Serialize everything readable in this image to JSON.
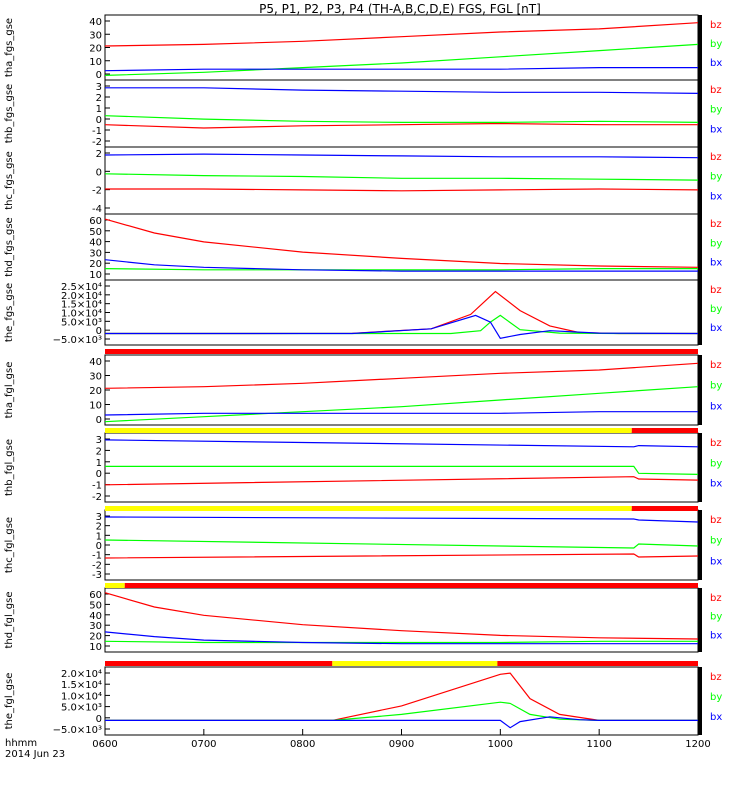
{
  "title": "P5, P1, P2, P3, P4 (TH-A,B,C,D,E) FGS, FGL [nT]",
  "footer": {
    "label": "hhmm",
    "date": "2014 Jun 23"
  },
  "xaxis": {
    "ticks": [
      "0600",
      "0700",
      "0800",
      "0900",
      "1000",
      "1100",
      "1200"
    ],
    "range": [
      6,
      12
    ]
  },
  "colors": {
    "bx": "#0000ff",
    "by": "#00ff00",
    "bz": "#ff0000",
    "flag_red": "#ff0000",
    "flag_yellow": "#ffff00"
  },
  "chart_data": [
    {
      "type": "line",
      "ylabel": "tha_fgs_gse",
      "yticks": [
        "40",
        "30",
        "20",
        "10",
        "0"
      ],
      "ylim": [
        0,
        42
      ],
      "series": [
        {
          "name": "bz",
          "x": [
            6,
            7,
            8,
            9,
            10,
            11,
            12
          ],
          "y": [
            22,
            23,
            25,
            28,
            31,
            33,
            37
          ]
        },
        {
          "name": "by",
          "x": [
            6,
            7,
            8,
            9,
            10,
            11,
            12
          ],
          "y": [
            3,
            5,
            8,
            11,
            15,
            19,
            23
          ]
        },
        {
          "name": "bx",
          "x": [
            6,
            7,
            8,
            9,
            10,
            11,
            12
          ],
          "y": [
            6,
            7,
            7,
            7,
            7,
            8,
            8
          ]
        }
      ]
    },
    {
      "type": "line",
      "ylabel": "thb_fgs_gse",
      "yticks": [
        "3",
        "2",
        "1",
        "0",
        "-1",
        "-2"
      ],
      "ylim": [
        -2.5,
        3.5
      ],
      "series": [
        {
          "name": "bz",
          "x": [
            6,
            7,
            8,
            9,
            10,
            11,
            12
          ],
          "y": [
            -0.5,
            -0.8,
            -0.6,
            -0.5,
            -0.4,
            -0.5,
            -0.5
          ]
        },
        {
          "name": "by",
          "x": [
            6,
            7,
            8,
            9,
            10,
            11,
            12
          ],
          "y": [
            0.3,
            0.0,
            -0.2,
            -0.3,
            -0.3,
            -0.2,
            -0.3
          ]
        },
        {
          "name": "bx",
          "x": [
            6,
            7,
            8,
            9,
            10,
            11,
            12
          ],
          "y": [
            2.8,
            2.8,
            2.6,
            2.5,
            2.4,
            2.4,
            2.3
          ]
        }
      ]
    },
    {
      "type": "line",
      "ylabel": "thc_fgs_gse",
      "yticks": [
        "2",
        "0",
        "-2",
        "-4"
      ],
      "ylim": [
        -4,
        3.5
      ],
      "series": [
        {
          "name": "bz",
          "x": [
            6,
            7,
            8,
            9,
            10,
            11,
            12
          ],
          "y": [
            -1.2,
            -1.2,
            -1.3,
            -1.4,
            -1.3,
            -1.2,
            -1.3
          ]
        },
        {
          "name": "by",
          "x": [
            6,
            7,
            8,
            9,
            10,
            11,
            12
          ],
          "y": [
            0.5,
            0.3,
            0.2,
            0.0,
            0.0,
            -0.1,
            -0.2
          ]
        },
        {
          "name": "bx",
          "x": [
            6,
            7,
            8,
            9,
            10,
            11,
            12
          ],
          "y": [
            2.6,
            2.7,
            2.6,
            2.5,
            2.4,
            2.4,
            2.3
          ]
        }
      ]
    },
    {
      "type": "line",
      "ylabel": "thd_fgs_gse",
      "yticks": [
        "60",
        "50",
        "40",
        "30",
        "20",
        "10"
      ],
      "ylim": [
        8,
        60
      ],
      "series": [
        {
          "name": "bz",
          "x": [
            6,
            6.5,
            7,
            8,
            9,
            10,
            11,
            12
          ],
          "y": [
            56,
            45,
            38,
            30,
            25,
            21,
            19,
            18
          ]
        },
        {
          "name": "by",
          "x": [
            6,
            7,
            8,
            9,
            10,
            11,
            12
          ],
          "y": [
            17,
            16,
            16,
            16,
            16,
            17,
            17
          ]
        },
        {
          "name": "bx",
          "x": [
            6,
            6.5,
            7,
            8,
            9,
            10,
            11,
            12
          ],
          "y": [
            24,
            20,
            18,
            16,
            15,
            15,
            15,
            15
          ]
        }
      ]
    },
    {
      "type": "line",
      "ylabel": "the_fgs_gse",
      "yticks": [
        "2.5×10⁴",
        "2.0×10⁴",
        "1.5×10⁴",
        "1.0×10⁴",
        "5.0×10³",
        "0",
        "−5.0×10³"
      ],
      "ylim": [
        -6000,
        28000
      ],
      "series": [
        {
          "name": "bz",
          "x": [
            6,
            7.5,
            8.5,
            9.3,
            9.7,
            9.95,
            10.2,
            10.5,
            10.8,
            11.2,
            12
          ],
          "y": [
            0,
            0,
            100,
            2500,
            10000,
            22000,
            12000,
            4000,
            500,
            0,
            0
          ]
        },
        {
          "name": "by",
          "x": [
            6,
            7.5,
            8.5,
            9.5,
            9.8,
            9.9,
            10,
            10.2,
            10.6,
            11.2,
            12
          ],
          "y": [
            0,
            0,
            0,
            0,
            1500,
            6000,
            9500,
            2000,
            200,
            0,
            0
          ]
        },
        {
          "name": "bx",
          "x": [
            6,
            7.5,
            8.5,
            9.3,
            9.75,
            9.9,
            10,
            10.2,
            10.5,
            11,
            12
          ],
          "y": [
            0,
            0,
            0,
            2500,
            9500,
            6000,
            -2500,
            -500,
            1500,
            200,
            0
          ]
        }
      ]
    },
    {
      "type": "line",
      "ylabel": "tha_fgl_gse",
      "yticks": [
        "40",
        "30",
        "20",
        "10",
        "0"
      ],
      "ylim": [
        0,
        42
      ],
      "series": [
        {
          "name": "bz",
          "x": [
            6,
            7,
            8,
            9,
            10,
            11,
            12
          ],
          "y": [
            22,
            23,
            25,
            28,
            31,
            33,
            37
          ]
        },
        {
          "name": "by",
          "x": [
            6,
            7,
            8,
            9,
            10,
            11,
            12
          ],
          "y": [
            2,
            5,
            8,
            11,
            15,
            19,
            23
          ]
        },
        {
          "name": "bx",
          "x": [
            6,
            7,
            8,
            9,
            10,
            11,
            12
          ],
          "y": [
            6,
            7,
            7,
            7,
            7,
            8,
            8
          ]
        }
      ]
    },
    {
      "type": "line",
      "ylabel": "thb_fgl_gse",
      "yticks": [
        "3",
        "2",
        "1",
        "0",
        "-1",
        "-2"
      ],
      "ylim": [
        -2.5,
        3.5
      ],
      "series": [
        {
          "name": "bz",
          "x": [
            6,
            11.35,
            11.4,
            12
          ],
          "y": [
            -1.0,
            -0.3,
            -0.5,
            -0.6
          ]
        },
        {
          "name": "by",
          "x": [
            6,
            11.35,
            11.4,
            12
          ],
          "y": [
            0.6,
            0.6,
            0.0,
            -0.1
          ]
        },
        {
          "name": "bx",
          "x": [
            6,
            11.35,
            11.4,
            12
          ],
          "y": [
            2.9,
            2.3,
            2.4,
            2.3
          ]
        }
      ]
    },
    {
      "type": "line",
      "ylabel": "thc_fgl_gse",
      "yticks": [
        "3",
        "2",
        "1",
        "0",
        "-1",
        "-2",
        "-3"
      ],
      "ylim": [
        -3.5,
        3.5
      ],
      "series": [
        {
          "name": "bz",
          "x": [
            6,
            11.35,
            11.4,
            12
          ],
          "y": [
            -1.3,
            -0.9,
            -1.2,
            -1.1
          ]
        },
        {
          "name": "by",
          "x": [
            6,
            11.35,
            11.4,
            12
          ],
          "y": [
            0.5,
            -0.3,
            0.1,
            -0.1
          ]
        },
        {
          "name": "bx",
          "x": [
            6,
            11.35,
            11.4,
            12
          ],
          "y": [
            2.8,
            2.6,
            2.5,
            2.3
          ]
        }
      ]
    },
    {
      "type": "line",
      "ylabel": "thd_fgl_gse",
      "yticks": [
        "60",
        "50",
        "40",
        "30",
        "20",
        "10"
      ],
      "ylim": [
        8,
        62
      ],
      "series": [
        {
          "name": "bz",
          "x": [
            6,
            6.5,
            7,
            8,
            9,
            10,
            11,
            12
          ],
          "y": [
            58,
            46,
            39,
            31,
            26,
            22,
            20,
            19
          ]
        },
        {
          "name": "by",
          "x": [
            6,
            7,
            8,
            9,
            10,
            11,
            12
          ],
          "y": [
            17,
            16,
            16,
            16,
            16,
            17,
            17
          ]
        },
        {
          "name": "bx",
          "x": [
            6,
            6.5,
            7,
            8,
            9,
            10,
            11,
            12
          ],
          "y": [
            25,
            21,
            18,
            16,
            15,
            15,
            15,
            15
          ]
        }
      ]
    },
    {
      "type": "line",
      "ylabel": "the_fgl_gse",
      "yticks": [
        "2.0×10⁴",
        "1.5×10⁴",
        "1.0×10⁴",
        "5.0×10³",
        "0",
        "−5.0×10³"
      ],
      "ylim": [
        -6000,
        22000
      ],
      "series": [
        {
          "name": "bz",
          "x": [
            6,
            8.3,
            9,
            10,
            10.1,
            10.3,
            10.6,
            11,
            12
          ],
          "y": [
            0,
            0,
            6000,
            19000,
            19500,
            9000,
            2500,
            0,
            0
          ]
        },
        {
          "name": "by",
          "x": [
            6,
            8.3,
            9,
            10,
            10.1,
            10.3,
            10.6,
            11,
            12
          ],
          "y": [
            0,
            0,
            2500,
            7500,
            7000,
            2500,
            500,
            0,
            0
          ]
        },
        {
          "name": "bx",
          "x": [
            6,
            8.3,
            9,
            10,
            10.1,
            10.2,
            10.5,
            10.8,
            11,
            12
          ],
          "y": [
            0,
            0,
            0,
            0,
            -3000,
            -500,
            1500,
            300,
            0,
            0
          ]
        }
      ]
    }
  ],
  "flags": [
    {
      "segments": [
        {
          "from": 6,
          "to": 12,
          "color": "red"
        }
      ]
    },
    {
      "segments": [
        {
          "from": 6,
          "to": 11.33,
          "color": "yellow"
        },
        {
          "from": 11.33,
          "to": 12,
          "color": "red"
        }
      ]
    },
    {
      "segments": [
        {
          "from": 6,
          "to": 11.33,
          "color": "yellow"
        },
        {
          "from": 11.33,
          "to": 12,
          "color": "red"
        }
      ]
    },
    {
      "segments": [
        {
          "from": 6,
          "to": 6.2,
          "color": "yellow"
        },
        {
          "from": 6.2,
          "to": 12,
          "color": "red"
        }
      ]
    },
    {
      "segments": [
        {
          "from": 6,
          "to": 8.3,
          "color": "red"
        },
        {
          "from": 8.3,
          "to": 9.97,
          "color": "yellow"
        },
        {
          "from": 9.97,
          "to": 12,
          "color": "red"
        }
      ]
    }
  ]
}
